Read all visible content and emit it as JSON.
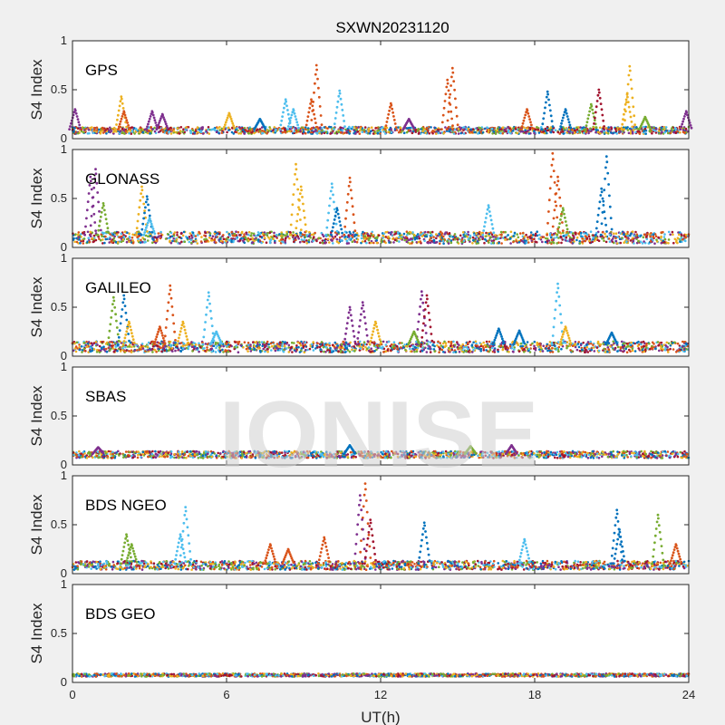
{
  "figure": {
    "title": "SXWN20231120",
    "xlabel": "UT(h)",
    "watermark": "IONISE",
    "background": "#f0f0f0",
    "axes_background": "#ffffff"
  },
  "palette": [
    "#0072bd",
    "#d95319",
    "#edb120",
    "#7e2f8e",
    "#77ac30",
    "#4dbeee",
    "#a2142f"
  ],
  "chart_data": [
    {
      "type": "scatter",
      "panel": "GPS",
      "label": "GPS",
      "ylabel": "S4 Index",
      "xlim": [
        0,
        24
      ],
      "ylim": [
        0,
        1
      ],
      "xticks": [
        0,
        6,
        12,
        18,
        24
      ],
      "yticks": [
        0,
        0.5,
        1
      ],
      "show_xticklabels": false,
      "baseline": [
        0.05,
        0.12
      ],
      "spikes": [
        {
          "x": 0.1,
          "y": 0.3,
          "c": 3
        },
        {
          "x": 1.9,
          "y": 0.43,
          "c": 2
        },
        {
          "x": 2.0,
          "y": 0.28,
          "c": 1
        },
        {
          "x": 3.1,
          "y": 0.28,
          "c": 3
        },
        {
          "x": 3.5,
          "y": 0.25,
          "c": 3
        },
        {
          "x": 6.1,
          "y": 0.26,
          "c": 2
        },
        {
          "x": 7.3,
          "y": 0.2,
          "c": 0
        },
        {
          "x": 8.3,
          "y": 0.4,
          "c": 5
        },
        {
          "x": 8.6,
          "y": 0.3,
          "c": 5
        },
        {
          "x": 9.3,
          "y": 0.4,
          "c": 1
        },
        {
          "x": 9.5,
          "y": 0.75,
          "c": 1
        },
        {
          "x": 10.4,
          "y": 0.49,
          "c": 5
        },
        {
          "x": 12.4,
          "y": 0.36,
          "c": 1
        },
        {
          "x": 13.1,
          "y": 0.2,
          "c": 3
        },
        {
          "x": 14.6,
          "y": 0.6,
          "c": 1
        },
        {
          "x": 14.8,
          "y": 0.72,
          "c": 1
        },
        {
          "x": 17.7,
          "y": 0.3,
          "c": 1
        },
        {
          "x": 18.5,
          "y": 0.48,
          "c": 0
        },
        {
          "x": 19.2,
          "y": 0.3,
          "c": 0
        },
        {
          "x": 20.2,
          "y": 0.35,
          "c": 4
        },
        {
          "x": 20.5,
          "y": 0.5,
          "c": 6
        },
        {
          "x": 21.6,
          "y": 0.45,
          "c": 2
        },
        {
          "x": 21.7,
          "y": 0.74,
          "c": 2
        },
        {
          "x": 22.3,
          "y": 0.22,
          "c": 4
        },
        {
          "x": 23.9,
          "y": 0.28,
          "c": 3
        }
      ]
    },
    {
      "type": "scatter",
      "panel": "GLONASS",
      "label": "GLONASS",
      "ylabel": "S4 Index",
      "xlim": [
        0,
        24
      ],
      "ylim": [
        0,
        1
      ],
      "xticks": [
        0,
        6,
        12,
        18,
        24
      ],
      "yticks": [
        0,
        0.5,
        1
      ],
      "show_xticklabels": false,
      "baseline": [
        0.04,
        0.16
      ],
      "spikes": [
        {
          "x": 0.7,
          "y": 0.72,
          "c": 3
        },
        {
          "x": 0.9,
          "y": 0.8,
          "c": 3
        },
        {
          "x": 1.2,
          "y": 0.45,
          "c": 4
        },
        {
          "x": 2.7,
          "y": 0.62,
          "c": 2
        },
        {
          "x": 2.9,
          "y": 0.52,
          "c": 0
        },
        {
          "x": 3.0,
          "y": 0.3,
          "c": 5
        },
        {
          "x": 8.7,
          "y": 0.85,
          "c": 2
        },
        {
          "x": 8.9,
          "y": 0.62,
          "c": 2
        },
        {
          "x": 10.1,
          "y": 0.65,
          "c": 5
        },
        {
          "x": 10.3,
          "y": 0.4,
          "c": 0
        },
        {
          "x": 10.8,
          "y": 0.71,
          "c": 1
        },
        {
          "x": 16.2,
          "y": 0.43,
          "c": 5
        },
        {
          "x": 18.7,
          "y": 0.96,
          "c": 1
        },
        {
          "x": 18.9,
          "y": 0.72,
          "c": 1
        },
        {
          "x": 19.1,
          "y": 0.4,
          "c": 4
        },
        {
          "x": 20.8,
          "y": 0.93,
          "c": 0
        },
        {
          "x": 20.6,
          "y": 0.6,
          "c": 0
        }
      ]
    },
    {
      "type": "scatter",
      "panel": "GALILEO",
      "label": "GALILEO",
      "ylabel": "S4 Index",
      "xlim": [
        0,
        24
      ],
      "ylim": [
        0,
        1
      ],
      "xticks": [
        0,
        6,
        12,
        18,
        24
      ],
      "yticks": [
        0,
        0.5,
        1
      ],
      "show_xticklabels": false,
      "baseline": [
        0.04,
        0.15
      ],
      "spikes": [
        {
          "x": 1.6,
          "y": 0.6,
          "c": 4
        },
        {
          "x": 2.0,
          "y": 0.62,
          "c": 0
        },
        {
          "x": 2.2,
          "y": 0.35,
          "c": 2
        },
        {
          "x": 3.4,
          "y": 0.3,
          "c": 1
        },
        {
          "x": 3.8,
          "y": 0.72,
          "c": 1
        },
        {
          "x": 4.3,
          "y": 0.35,
          "c": 2
        },
        {
          "x": 5.3,
          "y": 0.65,
          "c": 5
        },
        {
          "x": 5.6,
          "y": 0.25,
          "c": 5
        },
        {
          "x": 10.8,
          "y": 0.5,
          "c": 3
        },
        {
          "x": 11.3,
          "y": 0.55,
          "c": 3
        },
        {
          "x": 11.8,
          "y": 0.35,
          "c": 2
        },
        {
          "x": 13.6,
          "y": 0.66,
          "c": 3
        },
        {
          "x": 13.8,
          "y": 0.62,
          "c": 6
        },
        {
          "x": 13.3,
          "y": 0.25,
          "c": 4
        },
        {
          "x": 16.6,
          "y": 0.28,
          "c": 0
        },
        {
          "x": 17.4,
          "y": 0.26,
          "c": 0
        },
        {
          "x": 18.9,
          "y": 0.74,
          "c": 5
        },
        {
          "x": 19.2,
          "y": 0.3,
          "c": 2
        },
        {
          "x": 21.0,
          "y": 0.24,
          "c": 0
        }
      ]
    },
    {
      "type": "scatter",
      "panel": "SBAS",
      "label": "SBAS",
      "ylabel": "S4 Index",
      "xlim": [
        0,
        24
      ],
      "ylim": [
        0,
        1
      ],
      "xticks": [
        0,
        6,
        12,
        18,
        24
      ],
      "yticks": [
        0,
        0.5,
        1
      ],
      "show_xticklabels": false,
      "baseline": [
        0.07,
        0.14
      ],
      "spikes": [
        {
          "x": 1.0,
          "y": 0.18,
          "c": 3
        },
        {
          "x": 10.8,
          "y": 0.2,
          "c": 0
        },
        {
          "x": 15.5,
          "y": 0.19,
          "c": 4
        },
        {
          "x": 17.1,
          "y": 0.2,
          "c": 3
        }
      ]
    },
    {
      "type": "scatter",
      "panel": "BDS NGEO",
      "label": "BDS NGEO",
      "ylabel": "S4 Index",
      "xlim": [
        0,
        24
      ],
      "ylim": [
        0,
        1
      ],
      "xticks": [
        0,
        6,
        12,
        18,
        24
      ],
      "yticks": [
        0,
        0.5,
        1
      ],
      "show_xticklabels": false,
      "baseline": [
        0.04,
        0.13
      ],
      "spikes": [
        {
          "x": 2.1,
          "y": 0.4,
          "c": 4
        },
        {
          "x": 2.3,
          "y": 0.3,
          "c": 4
        },
        {
          "x": 4.2,
          "y": 0.4,
          "c": 5
        },
        {
          "x": 4.4,
          "y": 0.68,
          "c": 5
        },
        {
          "x": 7.7,
          "y": 0.3,
          "c": 1
        },
        {
          "x": 8.4,
          "y": 0.25,
          "c": 1
        },
        {
          "x": 9.8,
          "y": 0.37,
          "c": 1
        },
        {
          "x": 11.4,
          "y": 0.92,
          "c": 1
        },
        {
          "x": 11.2,
          "y": 0.8,
          "c": 3
        },
        {
          "x": 11.6,
          "y": 0.55,
          "c": 6
        },
        {
          "x": 13.7,
          "y": 0.52,
          "c": 0
        },
        {
          "x": 17.6,
          "y": 0.35,
          "c": 5
        },
        {
          "x": 21.2,
          "y": 0.65,
          "c": 0
        },
        {
          "x": 21.3,
          "y": 0.45,
          "c": 0
        },
        {
          "x": 22.8,
          "y": 0.6,
          "c": 4
        },
        {
          "x": 23.5,
          "y": 0.3,
          "c": 1
        }
      ]
    },
    {
      "type": "scatter",
      "panel": "BDS GEO",
      "label": "BDS GEO",
      "ylabel": "S4 Index",
      "xlim": [
        0,
        24
      ],
      "ylim": [
        0,
        1
      ],
      "xticks": [
        0,
        6,
        12,
        18,
        24
      ],
      "yticks": [
        0,
        0.5,
        1
      ],
      "show_xticklabels": true,
      "baseline": [
        0.06,
        0.09
      ],
      "spikes": []
    }
  ]
}
